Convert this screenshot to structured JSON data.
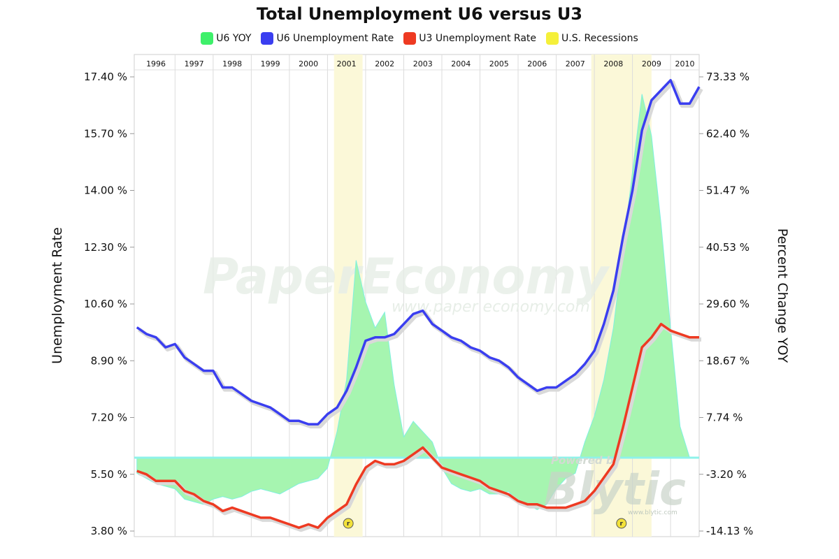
{
  "colors": {
    "u6_yoy_fill": "#a6f5b0",
    "u6_yoy_edge": "#7ff0e0",
    "u6_rate": "#3a3ef0",
    "u3_rate": "#ee3a22",
    "recession_fill": "#fbf8d8",
    "recession_legend": "#f5f03a",
    "u6_yoy_legend": "#3ef06a",
    "grid": "#dcdcdc",
    "zero_line": "#8ef2ea"
  },
  "watermarks": {
    "main": "PaperEconomy",
    "main_url": "www.paper economy.com",
    "powered": "Powered by",
    "blytic": "Blytic",
    "blytic_url": "www.blytic.com"
  },
  "recession_marker_label": "r",
  "chart_data": {
    "type": "line",
    "title": "Total Unemployment U6 versus U3",
    "legend": [
      "U6 YOY",
      "U6 Unemployment Rate",
      "U3 Unemployment Rate",
      "U.S. Recessions"
    ],
    "legend_placement": "top",
    "x_axis": {
      "ticks": [
        "1996",
        "1997",
        "1998",
        "1999",
        "2000",
        "2001",
        "2002",
        "2003",
        "2004",
        "2005",
        "2006",
        "2007",
        "2008",
        "2009",
        "2010"
      ],
      "range": [
        1995.93,
        2010.75
      ],
      "position": "top",
      "grid": true
    },
    "y_left": {
      "label": "Unemployment Rate",
      "range": [
        3.8,
        17.4
      ],
      "ticks": [
        "17.40 %",
        "15.70 %",
        "14.00 %",
        "12.30 %",
        "10.60 %",
        "8.90 %",
        "7.20 %",
        "5.50 %",
        "3.80 %"
      ]
    },
    "y_right": {
      "label": "Percent Change YOY",
      "range": [
        -14.13,
        73.33
      ],
      "ticks": [
        "73.33 %",
        "62.40 %",
        "51.47 %",
        "40.53 %",
        "29.60 %",
        "18.67 %",
        "7.74 %",
        "-3.20 %",
        "-14.13 %"
      ]
    },
    "recessions": [
      [
        2001.17,
        2001.92
      ],
      [
        2007.92,
        2009.5
      ]
    ],
    "series": [
      {
        "name": "U6 Unemployment Rate",
        "axis": "left",
        "points": [
          [
            1996.0,
            9.9
          ],
          [
            1996.25,
            9.7
          ],
          [
            1996.5,
            9.6
          ],
          [
            1996.75,
            9.3
          ],
          [
            1997.0,
            9.4
          ],
          [
            1997.25,
            9.0
          ],
          [
            1997.5,
            8.8
          ],
          [
            1997.75,
            8.6
          ],
          [
            1998.0,
            8.6
          ],
          [
            1998.25,
            8.1
          ],
          [
            1998.5,
            8.1
          ],
          [
            1998.75,
            7.9
          ],
          [
            1999.0,
            7.7
          ],
          [
            1999.25,
            7.6
          ],
          [
            1999.5,
            7.5
          ],
          [
            1999.75,
            7.3
          ],
          [
            2000.0,
            7.1
          ],
          [
            2000.25,
            7.1
          ],
          [
            2000.5,
            7.0
          ],
          [
            2000.75,
            7.0
          ],
          [
            2001.0,
            7.3
          ],
          [
            2001.25,
            7.5
          ],
          [
            2001.5,
            8.0
          ],
          [
            2001.75,
            8.7
          ],
          [
            2002.0,
            9.5
          ],
          [
            2002.25,
            9.6
          ],
          [
            2002.5,
            9.6
          ],
          [
            2002.75,
            9.7
          ],
          [
            2003.0,
            10.0
          ],
          [
            2003.25,
            10.3
          ],
          [
            2003.5,
            10.4
          ],
          [
            2003.75,
            10.0
          ],
          [
            2004.0,
            9.8
          ],
          [
            2004.25,
            9.6
          ],
          [
            2004.5,
            9.5
          ],
          [
            2004.75,
            9.3
          ],
          [
            2005.0,
            9.2
          ],
          [
            2005.25,
            9.0
          ],
          [
            2005.5,
            8.9
          ],
          [
            2005.75,
            8.7
          ],
          [
            2006.0,
            8.4
          ],
          [
            2006.25,
            8.2
          ],
          [
            2006.5,
            8.0
          ],
          [
            2006.75,
            8.1
          ],
          [
            2007.0,
            8.1
          ],
          [
            2007.25,
            8.3
          ],
          [
            2007.5,
            8.5
          ],
          [
            2007.75,
            8.8
          ],
          [
            2008.0,
            9.2
          ],
          [
            2008.25,
            10.0
          ],
          [
            2008.5,
            11.0
          ],
          [
            2008.75,
            12.6
          ],
          [
            2009.0,
            14.0
          ],
          [
            2009.25,
            15.8
          ],
          [
            2009.5,
            16.7
          ],
          [
            2009.75,
            17.0
          ],
          [
            2010.0,
            17.3
          ],
          [
            2010.25,
            16.6
          ],
          [
            2010.5,
            16.6
          ],
          [
            2010.75,
            17.1
          ]
        ]
      },
      {
        "name": "U3 Unemployment Rate",
        "axis": "left",
        "points": [
          [
            1996.0,
            5.6
          ],
          [
            1996.25,
            5.5
          ],
          [
            1996.5,
            5.3
          ],
          [
            1996.75,
            5.3
          ],
          [
            1997.0,
            5.3
          ],
          [
            1997.25,
            5.0
          ],
          [
            1997.5,
            4.9
          ],
          [
            1997.75,
            4.7
          ],
          [
            1998.0,
            4.6
          ],
          [
            1998.25,
            4.4
          ],
          [
            1998.5,
            4.5
          ],
          [
            1998.75,
            4.4
          ],
          [
            1999.0,
            4.3
          ],
          [
            1999.25,
            4.2
          ],
          [
            1999.5,
            4.2
          ],
          [
            1999.75,
            4.1
          ],
          [
            2000.0,
            4.0
          ],
          [
            2000.25,
            3.9
          ],
          [
            2000.5,
            4.0
          ],
          [
            2000.75,
            3.9
          ],
          [
            2001.0,
            4.2
          ],
          [
            2001.25,
            4.4
          ],
          [
            2001.5,
            4.6
          ],
          [
            2001.75,
            5.2
          ],
          [
            2002.0,
            5.7
          ],
          [
            2002.25,
            5.9
          ],
          [
            2002.5,
            5.8
          ],
          [
            2002.75,
            5.8
          ],
          [
            2003.0,
            5.9
          ],
          [
            2003.25,
            6.1
          ],
          [
            2003.5,
            6.3
          ],
          [
            2003.75,
            6.0
          ],
          [
            2004.0,
            5.7
          ],
          [
            2004.25,
            5.6
          ],
          [
            2004.5,
            5.5
          ],
          [
            2004.75,
            5.4
          ],
          [
            2005.0,
            5.3
          ],
          [
            2005.25,
            5.1
          ],
          [
            2005.5,
            5.0
          ],
          [
            2005.75,
            4.9
          ],
          [
            2006.0,
            4.7
          ],
          [
            2006.25,
            4.6
          ],
          [
            2006.5,
            4.6
          ],
          [
            2006.75,
            4.5
          ],
          [
            2007.0,
            4.5
          ],
          [
            2007.25,
            4.5
          ],
          [
            2007.5,
            4.6
          ],
          [
            2007.75,
            4.7
          ],
          [
            2008.0,
            5.0
          ],
          [
            2008.25,
            5.4
          ],
          [
            2008.5,
            5.8
          ],
          [
            2008.75,
            6.9
          ],
          [
            2009.0,
            8.1
          ],
          [
            2009.25,
            9.3
          ],
          [
            2009.5,
            9.6
          ],
          [
            2009.75,
            10.0
          ],
          [
            2010.0,
            9.8
          ],
          [
            2010.25,
            9.7
          ],
          [
            2010.5,
            9.6
          ],
          [
            2010.75,
            9.6
          ]
        ]
      },
      {
        "name": "U6 YOY",
        "axis": "right",
        "type": "area",
        "points": [
          [
            1996.0,
            -3.0
          ],
          [
            1996.25,
            -4.0
          ],
          [
            1996.5,
            -5.0
          ],
          [
            1996.75,
            -5.5
          ],
          [
            1997.0,
            -6.0
          ],
          [
            1997.25,
            -8.0
          ],
          [
            1997.5,
            -8.5
          ],
          [
            1997.75,
            -9.0
          ],
          [
            1998.0,
            -8.0
          ],
          [
            1998.25,
            -7.5
          ],
          [
            1998.5,
            -8.0
          ],
          [
            1998.75,
            -7.5
          ],
          [
            1999.0,
            -6.5
          ],
          [
            1999.25,
            -6.0
          ],
          [
            1999.5,
            -6.5
          ],
          [
            1999.75,
            -7.0
          ],
          [
            2000.0,
            -6.0
          ],
          [
            2000.25,
            -5.0
          ],
          [
            2000.5,
            -4.5
          ],
          [
            2000.75,
            -4.0
          ],
          [
            2001.0,
            -2.0
          ],
          [
            2001.25,
            5.0
          ],
          [
            2001.5,
            15.0
          ],
          [
            2001.75,
            38.0
          ],
          [
            2002.0,
            30.0
          ],
          [
            2002.25,
            25.0
          ],
          [
            2002.5,
            28.0
          ],
          [
            2002.75,
            14.0
          ],
          [
            2003.0,
            4.0
          ],
          [
            2003.25,
            7.0
          ],
          [
            2003.5,
            5.0
          ],
          [
            2003.75,
            3.0
          ],
          [
            2004.0,
            -2.0
          ],
          [
            2004.25,
            -5.0
          ],
          [
            2004.5,
            -6.0
          ],
          [
            2004.75,
            -6.5
          ],
          [
            2005.0,
            -6.0
          ],
          [
            2005.25,
            -7.0
          ],
          [
            2005.5,
            -7.0
          ],
          [
            2005.75,
            -6.5
          ],
          [
            2006.0,
            -8.5
          ],
          [
            2006.25,
            -9.0
          ],
          [
            2006.5,
            -10.0
          ],
          [
            2006.75,
            -9.0
          ],
          [
            2007.0,
            -6.0
          ],
          [
            2007.25,
            -4.0
          ],
          [
            2007.5,
            -3.0
          ],
          [
            2007.75,
            3.0
          ],
          [
            2008.0,
            8.0
          ],
          [
            2008.25,
            15.0
          ],
          [
            2008.5,
            25.0
          ],
          [
            2008.75,
            40.0
          ],
          [
            2009.0,
            55.0
          ],
          [
            2009.25,
            70.0
          ],
          [
            2009.5,
            62.0
          ],
          [
            2009.75,
            45.0
          ],
          [
            2010.0,
            25.0
          ],
          [
            2010.25,
            6.0
          ],
          [
            2010.5,
            0.0
          ],
          [
            2010.75,
            0.0
          ]
        ]
      }
    ]
  }
}
